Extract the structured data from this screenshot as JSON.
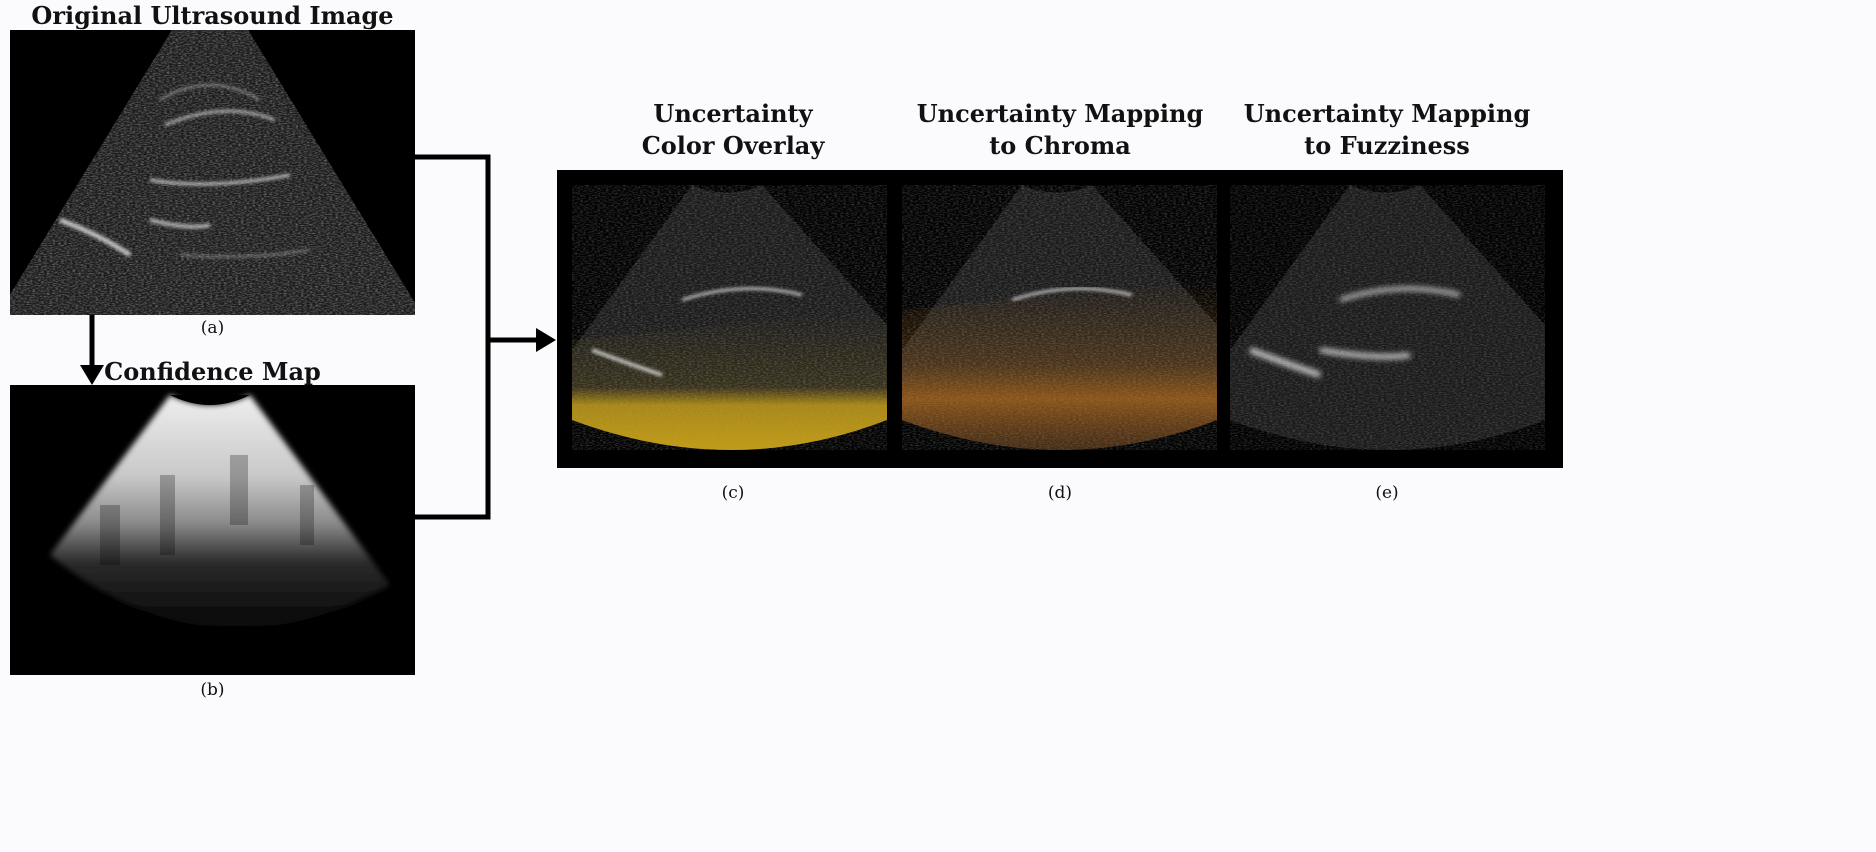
{
  "panels": {
    "original": {
      "title": "Original Ultrasound Image",
      "caption": "(a)"
    },
    "confidence": {
      "title": "Confidence Map",
      "caption": "(b)"
    },
    "overlay": {
      "title": "Uncertainty\nColor Overlay",
      "caption": "(c)"
    },
    "chroma": {
      "title": "Uncertainty Mapping\nto Chroma",
      "caption": "(d)"
    },
    "fuzziness": {
      "title": "Uncertainty Mapping\nto Fuzziness",
      "caption": "(e)"
    }
  },
  "colors": {
    "background": "#fbfafc",
    "overlay_tint": "#c9a21a",
    "chroma_tint": "#d07a1c",
    "arrows": "#000000"
  }
}
